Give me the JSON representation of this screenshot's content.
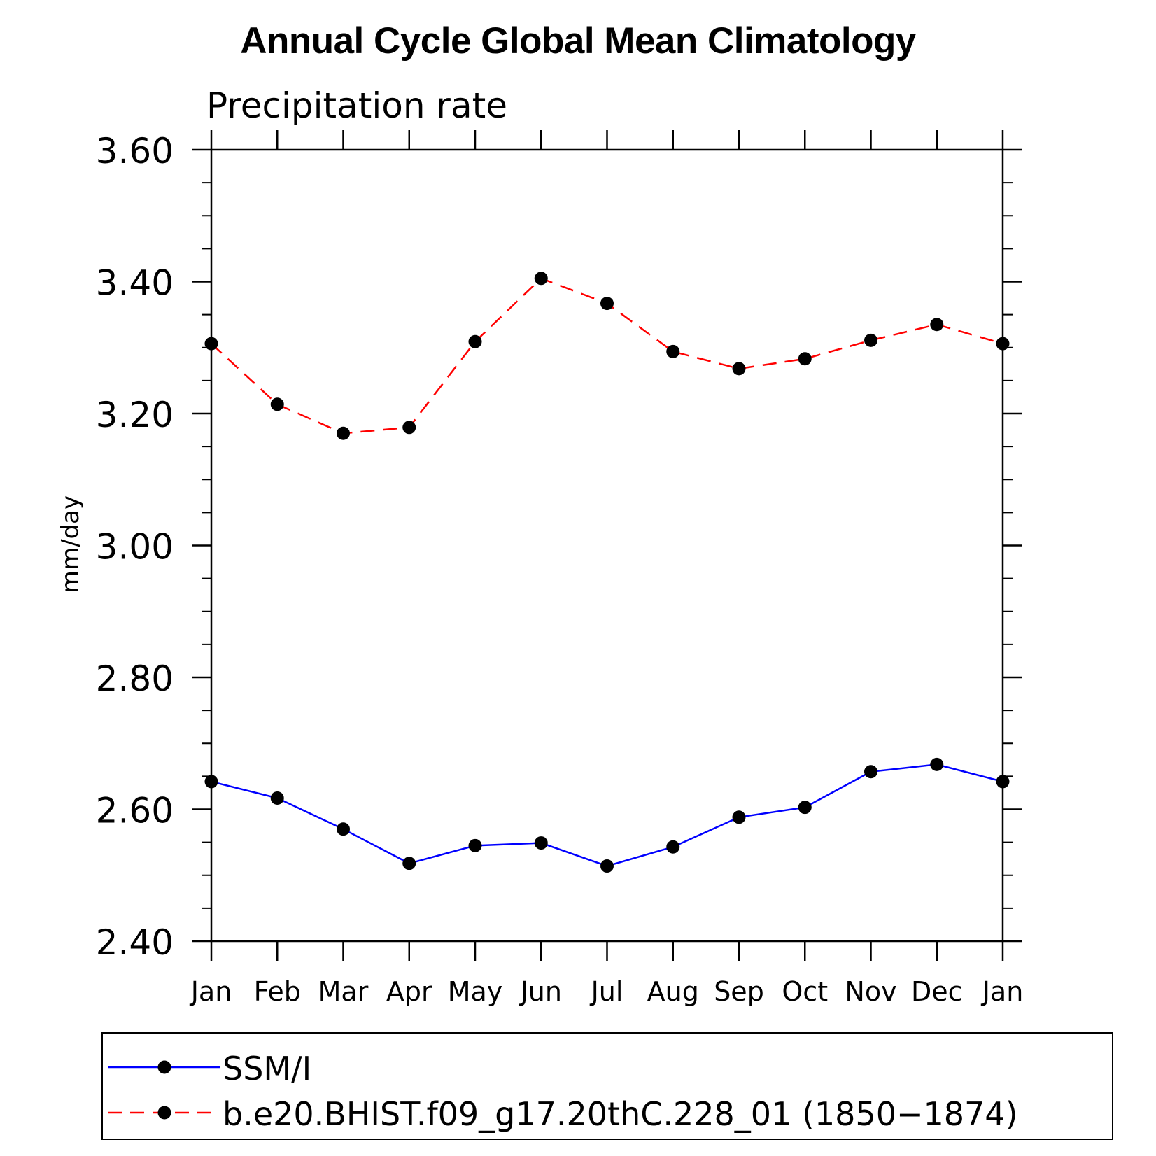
{
  "chart_data": {
    "type": "line",
    "title": "Annual Cycle Global Mean Climatology",
    "subtitle": "Precipitation rate",
    "xlabel": "",
    "ylabel": "mm/day",
    "categories": [
      "Jan",
      "Feb",
      "Mar",
      "Apr",
      "May",
      "Jun",
      "Jul",
      "Aug",
      "Sep",
      "Oct",
      "Nov",
      "Dec",
      "Jan"
    ],
    "ylim": [
      2.4,
      3.6
    ],
    "yticks": [
      "2.40",
      "2.60",
      "2.80",
      "3.00",
      "3.20",
      "3.40",
      "3.60"
    ],
    "grid": false,
    "legend_position": "bottom",
    "series": [
      {
        "name": "SSM/I",
        "color": "#0000ff",
        "style": "solid",
        "marker": "filled-circle",
        "values": [
          2.642,
          2.617,
          2.57,
          2.518,
          2.545,
          2.549,
          2.514,
          2.543,
          2.588,
          2.603,
          2.657,
          2.668,
          2.642
        ]
      },
      {
        "name": "b.e20.BHIST.f09_g17.20thC.228_01 (1850−1874)",
        "color": "#ff0000",
        "style": "dashed",
        "marker": "filled-circle",
        "values": [
          3.306,
          3.214,
          3.17,
          3.179,
          3.309,
          3.405,
          3.367,
          3.294,
          3.268,
          3.283,
          3.311,
          3.335,
          3.306
        ]
      }
    ]
  }
}
